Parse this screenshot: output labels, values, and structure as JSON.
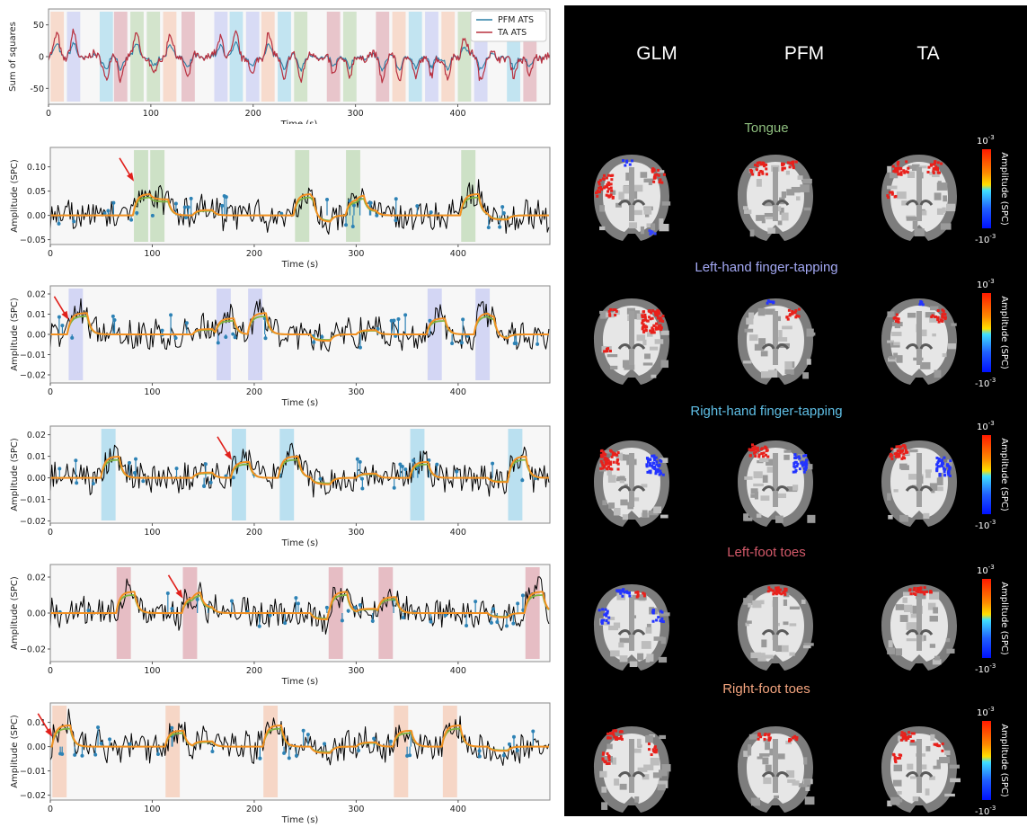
{
  "colors": {
    "pfm": "#2a7fa6",
    "ta": "#b8303f",
    "green": "#7cb342",
    "orange": "#f39021",
    "raw": "#000000",
    "spikes": "#2d82b5",
    "task_tongue": "#8fc07c",
    "task_lh": "#9da6f0",
    "task_rh": "#5fbfe6",
    "task_lf": "#cc6677",
    "task_rf": "#f6a57d"
  },
  "chart_data": [
    {
      "type": "line",
      "xlabel": "Time (s)",
      "ylabel": "Sum of squares",
      "xlim": [
        0,
        490
      ],
      "ylim": [
        -75,
        75
      ],
      "xticks": [
        0,
        100,
        200,
        300,
        400
      ],
      "yticks": [
        -50,
        0,
        50
      ],
      "legend": {
        "placement": "top-right",
        "entries": [
          "PFM ATS",
          "TA ATS"
        ]
      },
      "series": [
        {
          "name": "PFM ATS",
          "color": "pfm"
        },
        {
          "name": "TA ATS",
          "color": "ta"
        }
      ],
      "blocks": [
        {
          "start": 2,
          "end": 15,
          "task": "rf"
        },
        {
          "start": 18,
          "end": 31,
          "task": "lh"
        },
        {
          "start": 50,
          "end": 63,
          "task": "rh"
        },
        {
          "start": 64,
          "end": 77,
          "task": "lf"
        },
        {
          "start": 80,
          "end": 93,
          "task": "tongue"
        },
        {
          "start": 96,
          "end": 109,
          "task": "tongue"
        },
        {
          "start": 112,
          "end": 125,
          "task": "rf"
        },
        {
          "start": 130,
          "end": 143,
          "task": "lf"
        },
        {
          "start": 162,
          "end": 175,
          "task": "lh"
        },
        {
          "start": 177,
          "end": 190,
          "task": "rh"
        },
        {
          "start": 193,
          "end": 206,
          "task": "lh"
        },
        {
          "start": 208,
          "end": 221,
          "task": "rf"
        },
        {
          "start": 224,
          "end": 237,
          "task": "rh"
        },
        {
          "start": 240,
          "end": 253,
          "task": "tongue"
        },
        {
          "start": 272,
          "end": 285,
          "task": "lf"
        },
        {
          "start": 288,
          "end": 301,
          "task": "tongue"
        },
        {
          "start": 320,
          "end": 333,
          "task": "lf"
        },
        {
          "start": 336,
          "end": 349,
          "task": "rf"
        },
        {
          "start": 352,
          "end": 365,
          "task": "rh"
        },
        {
          "start": 368,
          "end": 381,
          "task": "lh"
        },
        {
          "start": 384,
          "end": 397,
          "task": "rf"
        },
        {
          "start": 400,
          "end": 413,
          "task": "tongue"
        },
        {
          "start": 416,
          "end": 429,
          "task": "lh"
        },
        {
          "start": 448,
          "end": 461,
          "task": "rh"
        },
        {
          "start": 464,
          "end": 477,
          "task": "lf"
        }
      ]
    },
    {
      "type": "line",
      "xlabel": "Time (s)",
      "ylabel": "Amplitude (SPC)",
      "xlim": [
        0,
        490
      ],
      "ylim": [
        -0.06,
        0.14
      ],
      "xticks": [
        0,
        100,
        200,
        300,
        400
      ],
      "yticks": [
        -0.05,
        0.0,
        0.05,
        0.1
      ],
      "ytick_labels": [
        "−0.05",
        "0.00",
        "0.05",
        "0.10"
      ],
      "task": "tongue",
      "blocks": [
        {
          "start": 82,
          "end": 96
        },
        {
          "start": 98,
          "end": 112
        },
        {
          "start": 240,
          "end": 254
        },
        {
          "start": 290,
          "end": 304
        },
        {
          "start": 403,
          "end": 417
        }
      ],
      "arrow_x": 82
    },
    {
      "type": "line",
      "xlabel": "Time (s)",
      "ylabel": "Amplitude (SPC)",
      "xlim": [
        0,
        490
      ],
      "ylim": [
        -0.024,
        0.024
      ],
      "xticks": [
        0,
        100,
        200,
        300,
        400
      ],
      "yticks": [
        -0.02,
        -0.01,
        0.0,
        0.01,
        0.02
      ],
      "ytick_labels": [
        "−0.02",
        "−0.01",
        "0.00",
        "0.01",
        "0.02"
      ],
      "task": "lh",
      "blocks": [
        {
          "start": 18,
          "end": 32
        },
        {
          "start": 163,
          "end": 177
        },
        {
          "start": 194,
          "end": 208
        },
        {
          "start": 370,
          "end": 384
        },
        {
          "start": 417,
          "end": 431
        }
      ],
      "arrow_x": 18
    },
    {
      "type": "line",
      "xlabel": "Time (s)",
      "ylabel": "Amplitude (SPC)",
      "xlim": [
        0,
        490
      ],
      "ylim": [
        -0.021,
        0.024
      ],
      "xticks": [
        0,
        100,
        200,
        300,
        400
      ],
      "yticks": [
        -0.02,
        -0.01,
        0.0,
        0.01,
        0.02
      ],
      "ytick_labels": [
        "−0.02",
        "−0.01",
        "0.00",
        "0.01",
        "0.02"
      ],
      "task": "rh",
      "blocks": [
        {
          "start": 50,
          "end": 64
        },
        {
          "start": 178,
          "end": 192
        },
        {
          "start": 225,
          "end": 239
        },
        {
          "start": 353,
          "end": 367
        },
        {
          "start": 449,
          "end": 463
        }
      ],
      "arrow_x": 178
    },
    {
      "type": "line",
      "xlabel": "Time (s)",
      "ylabel": "Amplitude (SPC)",
      "xlim": [
        0,
        490
      ],
      "ylim": [
        -0.027,
        0.027
      ],
      "xticks": [
        0,
        100,
        200,
        300,
        400
      ],
      "yticks": [
        -0.02,
        0.0,
        0.02
      ],
      "ytick_labels": [
        "−0.02",
        "0.00",
        "0.02"
      ],
      "task": "lf",
      "blocks": [
        {
          "start": 65,
          "end": 79
        },
        {
          "start": 130,
          "end": 144
        },
        {
          "start": 273,
          "end": 287
        },
        {
          "start": 322,
          "end": 336
        },
        {
          "start": 466,
          "end": 480
        }
      ],
      "arrow_x": 130
    },
    {
      "type": "line",
      "xlabel": "Time (s)",
      "ylabel": "Amplitude (SPC)",
      "xlim": [
        0,
        490
      ],
      "ylim": [
        -0.022,
        0.018
      ],
      "xticks": [
        0,
        100,
        200,
        300,
        400
      ],
      "yticks": [
        -0.02,
        -0.01,
        0.0,
        0.01
      ],
      "ytick_labels": [
        "−0.02",
        "−0.01",
        "0.00",
        "0.01"
      ],
      "task": "rf",
      "blocks": [
        {
          "start": 2,
          "end": 16
        },
        {
          "start": 113,
          "end": 127
        },
        {
          "start": 209,
          "end": 223
        },
        {
          "start": 337,
          "end": 351
        },
        {
          "start": 385,
          "end": 399
        }
      ],
      "arrow_x": 2
    }
  ],
  "maps": {
    "columns": [
      "GLM",
      "PFM",
      "TA"
    ],
    "tasks": [
      {
        "key": "tongue",
        "label": "Tongue",
        "color": "#8fbf7f"
      },
      {
        "key": "lh",
        "label": "Left-hand finger-tapping",
        "color": "#a3a8f3"
      },
      {
        "key": "rh",
        "label": "Right-hand finger-tapping",
        "color": "#5fbfe6"
      },
      {
        "key": "lf",
        "label": "Left-foot toes",
        "color": "#d45a6a"
      },
      {
        "key": "rf",
        "label": "Right-foot toes",
        "color": "#f5a57f"
      }
    ],
    "colorbar": {
      "label": "Amplitude (SPC)",
      "max_base": "10",
      "max_exp": "-3",
      "min_base": "-10",
      "min_exp": "-3"
    }
  }
}
